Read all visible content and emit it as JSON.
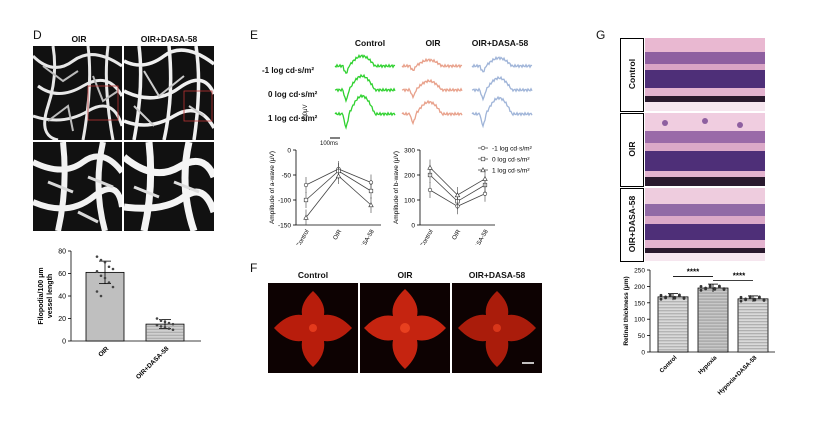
{
  "panels": {
    "D": {
      "label": "D",
      "headers": [
        "OIR",
        "OIR+DASA-58"
      ],
      "chart_data": {
        "type": "bar",
        "categories": [
          "OIR",
          "OIR+DASA-58"
        ],
        "values": [
          61,
          15
        ],
        "errors": [
          10,
          4
        ],
        "ylabel": "Filopodia/100 μm vessel length",
        "ylim": [
          0,
          80
        ],
        "yticks": [
          0,
          20,
          40,
          60,
          80
        ],
        "points": [
          [
            75,
            72,
            70,
            66,
            64,
            62,
            58,
            56,
            52,
            48,
            44,
            40
          ],
          [
            20,
            18,
            17,
            16,
            15,
            14,
            13,
            12,
            11,
            10
          ]
        ]
      }
    },
    "E": {
      "label": "E",
      "headers": [
        "Control",
        "OIR",
        "OIR+DASA-58"
      ],
      "row_labels": [
        "-1 log cd·s/m²",
        "0 log cd·s/m²",
        "1 log cd·s/m²"
      ],
      "scale_v": "100μV",
      "scale_t": "100ms",
      "colors": {
        "control": "#2fd12f",
        "oir": "#e8a08a",
        "dasa": "#9fb4d8"
      },
      "chart_data": [
        {
          "type": "line",
          "ylabel": "Amplitude of a-wave (μV)",
          "categories": [
            "Control",
            "OIR",
            "OIR+DASA-58"
          ],
          "ylim": [
            -150,
            0
          ],
          "yticks": [
            0,
            -50,
            -100,
            -150
          ],
          "series": [
            {
              "name": "-1 log cd·s/m²",
              "values": [
                -70,
                -38,
                -65
              ]
            },
            {
              "name": "0 log cd·s/m²",
              "values": [
                -100,
                -42,
                -82
              ]
            },
            {
              "name": "1 log cd·s/m²",
              "values": [
                -135,
                -52,
                -110
              ]
            }
          ]
        },
        {
          "type": "line",
          "ylabel": "Amplitude of b-wave (μV)",
          "categories": [
            "Control",
            "OIR",
            "OIR+DASA-58"
          ],
          "ylim": [
            0,
            300
          ],
          "yticks": [
            0,
            100,
            200,
            300
          ],
          "series": [
            {
              "name": "-1 log cd·s/m²",
              "values": [
                140,
                75,
                125
              ]
            },
            {
              "name": "0 log cd·s/m²",
              "values": [
                200,
                95,
                160
              ]
            },
            {
              "name": "1 log cd·s/m²",
              "values": [
                230,
                120,
                185
              ]
            }
          ]
        }
      ]
    },
    "F": {
      "label": "F",
      "headers": [
        "Control",
        "OIR",
        "OIR+DASA-58"
      ]
    },
    "G": {
      "label": "G",
      "row_labels": [
        "Control",
        "OIR",
        "OIR+DASA-58"
      ],
      "chart_data": {
        "type": "bar",
        "categories": [
          "Control",
          "Hypoxia",
          "Hypoxia+DASA-58"
        ],
        "values": [
          168,
          195,
          162
        ],
        "errors": [
          10,
          12,
          9
        ],
        "ylabel": "Retinal thickness (μm)",
        "ylim": [
          0,
          250
        ],
        "yticks": [
          0,
          50,
          100,
          150,
          200,
          250
        ],
        "significance": [
          "****",
          "****"
        ]
      }
    }
  }
}
